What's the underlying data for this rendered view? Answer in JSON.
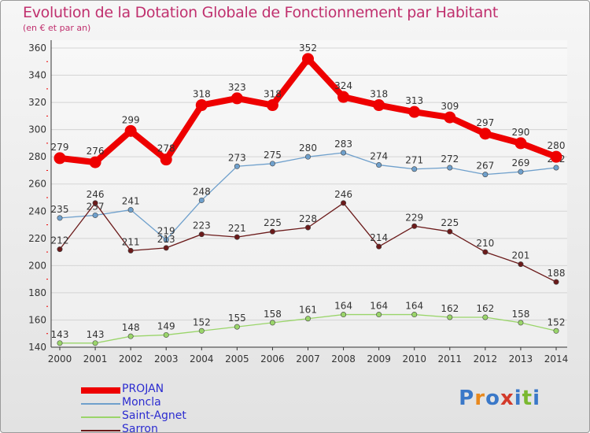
{
  "title": "Evolution de la Dotation Globale de Fonctionnement par Habitant",
  "subtitle": "(en € et par an)",
  "logo": {
    "text": "Proxiti",
    "letters": [
      "P",
      "r",
      "o",
      "x",
      "i",
      "t",
      "i"
    ],
    "colors": [
      "#3a78c8",
      "#e8891e",
      "#3a78c8",
      "#d33a2a",
      "#3a78c8",
      "#7ab830",
      "#3a78c8"
    ]
  },
  "chart_data": {
    "type": "line",
    "x": [
      "2000",
      "2001",
      "2002",
      "2003",
      "2004",
      "2005",
      "2006",
      "2007",
      "2008",
      "2009",
      "2010",
      "2011",
      "2012",
      "2013",
      "2014"
    ],
    "ylim": [
      140,
      360
    ],
    "yticks": [
      140,
      160,
      180,
      200,
      220,
      240,
      260,
      280,
      300,
      320,
      340,
      360
    ],
    "grid": "horizontal",
    "legend_placement": "bottom-left",
    "series": [
      {
        "name": "PROJAN",
        "color": "#ee0000",
        "values": [
          279,
          276,
          299,
          278,
          318,
          323,
          318,
          352,
          324,
          318,
          313,
          309,
          297,
          290,
          280
        ]
      },
      {
        "name": "Moncla",
        "color": "#6fa0cc",
        "values": [
          235,
          237,
          241,
          219,
          248,
          273,
          275,
          280,
          283,
          274,
          271,
          272,
          267,
          269,
          272
        ]
      },
      {
        "name": "Saint-Agnet",
        "color": "#9ad56a",
        "values": [
          143,
          143,
          148,
          149,
          152,
          155,
          158,
          161,
          164,
          164,
          164,
          162,
          162,
          158,
          152
        ]
      },
      {
        "name": "Sarron",
        "color": "#6b1a1a",
        "values": [
          212,
          246,
          211,
          213,
          223,
          221,
          225,
          228,
          246,
          214,
          229,
          225,
          210,
          201,
          188
        ]
      }
    ]
  }
}
